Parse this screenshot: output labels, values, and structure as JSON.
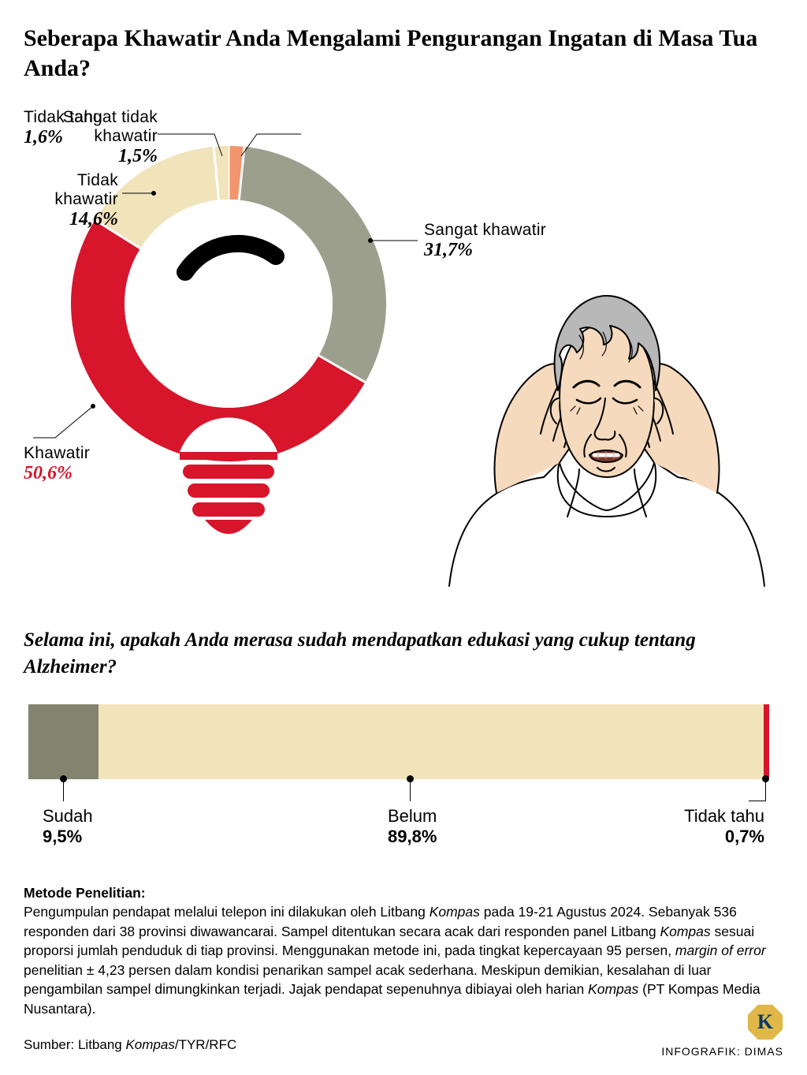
{
  "title": "Seberapa Khawatir Anda Mengalami Pengurangan Ingatan di Masa Tua Anda?",
  "donut": {
    "type": "donut",
    "center_icon": "lightbulb",
    "ring_outer_r": 200,
    "ring_inner_r": 132,
    "start_angle_deg": -90,
    "segments": [
      {
        "key": "tidak_tahu",
        "label": "Tidak tahu",
        "pct": "1,6%",
        "value": 1.6,
        "color": "#f1956e"
      },
      {
        "key": "sangat_khawatir",
        "label": "Sangat khawatir",
        "pct": "31,7%",
        "value": 31.7,
        "color": "#9d9f8d"
      },
      {
        "key": "khawatir",
        "label": "Khawatir",
        "pct": "50,6%",
        "value": 50.6,
        "color": "#d7152b",
        "pct_color": "#d7152b"
      },
      {
        "key": "tidak_khawatir",
        "label": "Tidak khawatir",
        "pct": "14,6%",
        "value": 14.6,
        "color": "#f1e4bb"
      },
      {
        "key": "sangat_tidak_khawatir",
        "label": "Sangat tidak khawatir",
        "pct": "1,5%",
        "value": 1.5,
        "color": "#f1e4bb"
      }
    ]
  },
  "sub_question": "Selama ini, apakah Anda merasa sudah mendapatkan edukasi yang cukup tentang Alzheimer?",
  "hbar": {
    "type": "stacked-bar-100",
    "segments": [
      {
        "key": "sudah",
        "label": "Sudah",
        "pct": "9,5%",
        "value": 9.5,
        "color": "#838470"
      },
      {
        "key": "belum",
        "label": "Belum",
        "pct": "89,8%",
        "value": 89.8,
        "color": "#f1e4bb"
      },
      {
        "key": "tidak_tahu",
        "label": "Tidak tahu",
        "pct": "0,7%",
        "value": 0.7,
        "color": "#d7152b"
      }
    ]
  },
  "method": {
    "heading": "Metode Penelitian:",
    "body_html": "Pengumpulan pendapat melalui telepon ini dilakukan oleh Litbang <em>Kompas</em> pada 19-21 Agustus 2024. Sebanyak 536 responden dari 38 provinsi diwawancarai. Sampel ditentukan secara acak dari responden panel Litbang <em>Kompas</em> sesuai proporsi jumlah penduduk di tiap provinsi. Menggunakan metode ini, pada tingkat kepercayaan 95 persen, <em>margin of error</em> penelitian ± 4,23 persen dalam kondisi penarikan sampel acak sederhana. Meskipun demikian, kesalahan di luar pengambilan sampel dimungkinkan terjadi. Jajak pendapat sepenuhnya dibiayai oleh harian <em>Kompas</em> (PT Kompas Media Nusantara)."
  },
  "source_html": "Sumber: Litbang <em>Kompas</em>/TYR/RFC",
  "credit": "INFOGRAFIK: DIMAS",
  "logo_letter": "K"
}
